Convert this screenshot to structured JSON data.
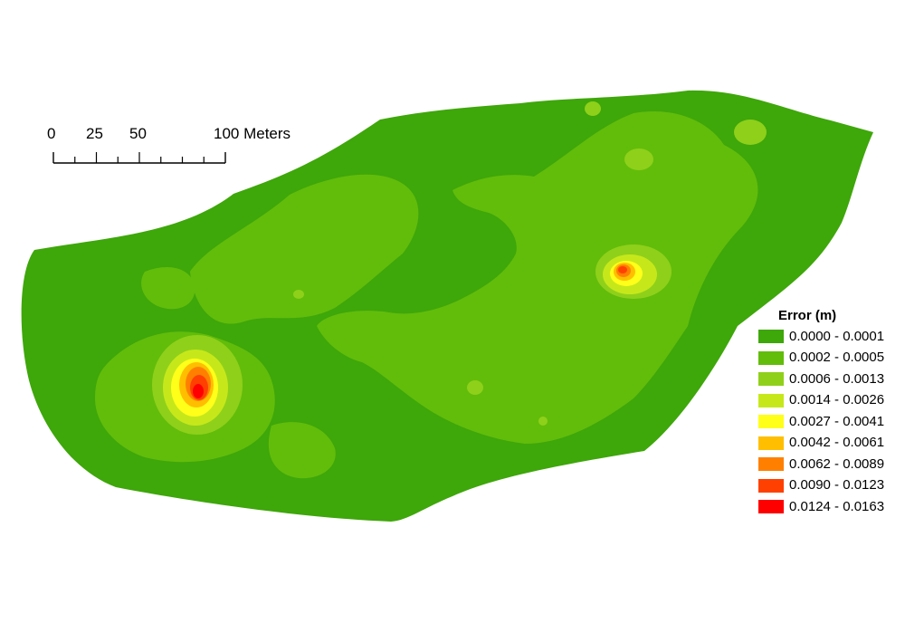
{
  "scale_bar": {
    "labels": [
      "0",
      "25",
      "50",
      "100 Meters"
    ]
  },
  "legend": {
    "title": "Error (m)",
    "items": [
      {
        "label": "0.0000 - 0.0001",
        "color": "#3ea70a"
      },
      {
        "label": "0.0002 - 0.0005",
        "color": "#62bd0a"
      },
      {
        "label": "0.0006 - 0.0013",
        "color": "#8fd01a"
      },
      {
        "label": "0.0014 - 0.0026",
        "color": "#c6e81a"
      },
      {
        "label": "0.0027 - 0.0041",
        "color": "#ffff1a"
      },
      {
        "label": "0.0042 - 0.0061",
        "color": "#ffbf00"
      },
      {
        "label": "0.0062 - 0.0089",
        "color": "#ff8000"
      },
      {
        "label": "0.0090 - 0.0123",
        "color": "#ff4000"
      },
      {
        "label": "0.0124 - 0.0163",
        "color": "#ff0000"
      }
    ]
  }
}
